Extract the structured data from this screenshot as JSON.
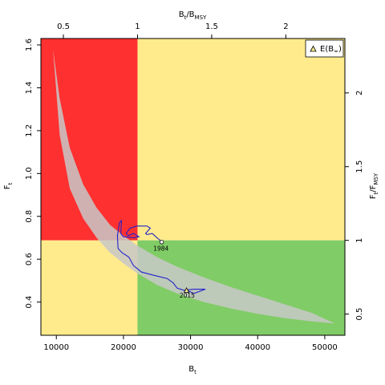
{
  "chart_data": {
    "type": "line",
    "xlabel": "B",
    "xlabel_sub": "t",
    "ylabel": "F",
    "ylabel_sub": "t",
    "top_label": "B",
    "top_label_sub": "t",
    "top_label_mid": "/B",
    "top_label_sub2": "MSY",
    "right_label": "F",
    "right_label_sub": "t",
    "right_label_mid": "/F",
    "right_label_sub2": "MSY",
    "xlim": [
      7700,
      53000
    ],
    "ylim": [
      0.245,
      1.63
    ],
    "x_ticks": [
      10000,
      20000,
      30000,
      40000,
      50000
    ],
    "y_ticks": [
      0.4,
      0.6,
      0.8,
      1.0,
      1.2,
      1.4,
      1.6
    ],
    "y_tick_labels": [
      "0.4",
      "0.6",
      "0.8",
      "1.0",
      "1.2",
      "1.4",
      "1.6"
    ],
    "bmsy": 22100,
    "fmsy": 0.688,
    "top_ticks": [
      0.5,
      1,
      1.5,
      2
    ],
    "top_tick_labels": [
      "0.5",
      "1",
      "1.5",
      "2"
    ],
    "right_ticks": [
      0.5,
      1,
      1.5,
      2
    ],
    "right_tick_labels": [
      "0.5",
      "1",
      "1.5",
      "2"
    ],
    "colors": {
      "red": "#ff3030",
      "yellow": "#ffeb8c",
      "green": "#80cc66",
      "band": "#c8c8c8",
      "trajectory": "#2222cc"
    },
    "equilibrium_band": {
      "upper": [
        [
          9500,
          1.58
        ],
        [
          10500,
          1.35
        ],
        [
          12000,
          1.12
        ],
        [
          14000,
          0.95
        ],
        [
          16000,
          0.84
        ],
        [
          18000,
          0.76
        ],
        [
          20000,
          0.71
        ],
        [
          22000,
          0.665
        ],
        [
          25000,
          0.61
        ],
        [
          28000,
          0.565
        ],
        [
          32000,
          0.515
        ],
        [
          36000,
          0.47
        ],
        [
          40000,
          0.43
        ],
        [
          44000,
          0.39
        ],
        [
          48000,
          0.35
        ],
        [
          51500,
          0.3
        ]
      ],
      "lower": [
        [
          51500,
          0.3
        ],
        [
          48000,
          0.31
        ],
        [
          44000,
          0.325
        ],
        [
          40000,
          0.345
        ],
        [
          36000,
          0.37
        ],
        [
          32000,
          0.4
        ],
        [
          28000,
          0.44
        ],
        [
          25000,
          0.48
        ],
        [
          22000,
          0.535
        ],
        [
          20000,
          0.58
        ],
        [
          18000,
          0.63
        ],
        [
          16000,
          0.7
        ],
        [
          14000,
          0.79
        ],
        [
          12000,
          0.93
        ],
        [
          10500,
          1.18
        ],
        [
          9500,
          1.58
        ]
      ]
    },
    "trajectory": [
      [
        25700,
        0.68
      ],
      [
        25400,
        0.69
      ],
      [
        25000,
        0.7
      ],
      [
        24300,
        0.72
      ],
      [
        23500,
        0.715
      ],
      [
        23300,
        0.72
      ],
      [
        24000,
        0.745
      ],
      [
        23500,
        0.755
      ],
      [
        22000,
        0.755
      ],
      [
        21000,
        0.745
      ],
      [
        20400,
        0.72
      ],
      [
        20700,
        0.71
      ],
      [
        21500,
        0.72
      ],
      [
        22300,
        0.705
      ],
      [
        21500,
        0.7
      ],
      [
        20000,
        0.705
      ],
      [
        19600,
        0.72
      ],
      [
        19700,
        0.78
      ],
      [
        19400,
        0.77
      ],
      [
        19100,
        0.71
      ],
      [
        19200,
        0.65
      ],
      [
        19800,
        0.63
      ],
      [
        20800,
        0.61
      ],
      [
        21500,
        0.57
      ],
      [
        22700,
        0.54
      ],
      [
        24500,
        0.525
      ],
      [
        26500,
        0.51
      ],
      [
        27400,
        0.49
      ],
      [
        28000,
        0.465
      ],
      [
        29000,
        0.455
      ],
      [
        30500,
        0.46
      ],
      [
        32200,
        0.46
      ],
      [
        30500,
        0.44
      ],
      [
        29400,
        0.455
      ]
    ],
    "trajectory_start_marker": [
      25700,
      0.68
    ],
    "end_marker": [
      29400,
      0.455
    ],
    "annotations": [
      {
        "text": "1984",
        "x": 25600,
        "y": 0.64
      },
      {
        "text": "2015",
        "x": 29500,
        "y": 0.42
      }
    ],
    "legend": {
      "label": "E(B",
      "sub": "∞",
      "close": ")",
      "position": "top-right"
    }
  }
}
